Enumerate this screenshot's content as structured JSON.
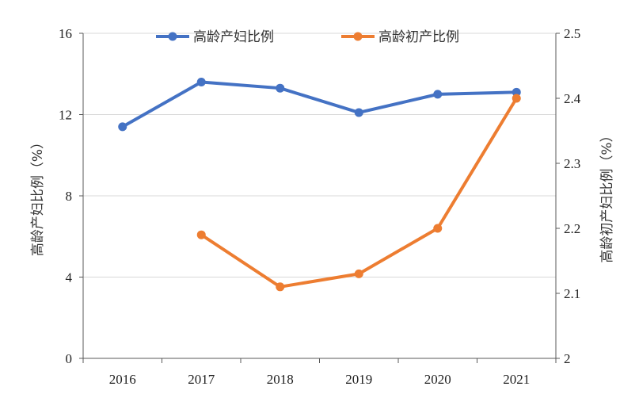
{
  "chart_data": {
    "type": "line",
    "categories": [
      "2016",
      "2017",
      "2018",
      "2019",
      "2020",
      "2021"
    ],
    "series": [
      {
        "name": "高龄产妇比例",
        "axis": "left",
        "color": "#4472C4",
        "values": [
          11.4,
          13.6,
          13.3,
          12.1,
          13.0,
          13.1
        ]
      },
      {
        "name": "高龄初产比例",
        "axis": "right",
        "color": "#ED7D31",
        "values": [
          null,
          2.19,
          2.11,
          2.13,
          2.2,
          2.4
        ]
      }
    ],
    "y_left": {
      "label": "高龄产妇比例（%）",
      "min": 0,
      "max": 16,
      "ticks": [
        "0",
        "4",
        "8",
        "12",
        "16"
      ]
    },
    "y_right": {
      "label": "高龄初产妇比例（%）",
      "min": 2,
      "max": 2.5,
      "ticks": [
        "2",
        "2.1",
        "2.2",
        "2.3",
        "2.4",
        "2.5"
      ]
    },
    "grid": "horizontal",
    "legend": "top-center"
  }
}
